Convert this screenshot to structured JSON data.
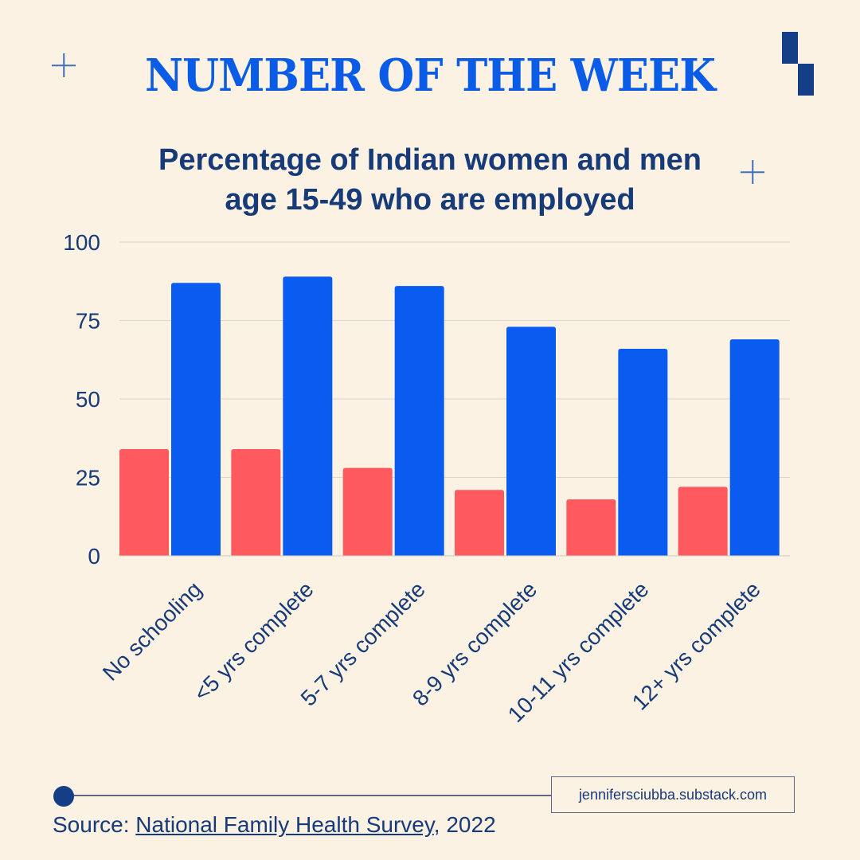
{
  "header": {
    "headline": "NUMBER OF THE WEEK"
  },
  "chart_data": {
    "type": "bar",
    "title": "Percentage of Indian women and men age 15-49 who are employed",
    "title_lines": [
      "Percentage of Indian women and men",
      "age 15-49 who are employed"
    ],
    "xlabel": "",
    "ylabel": "",
    "ylim": [
      0,
      100
    ],
    "yticks": [
      0,
      25,
      50,
      75,
      100
    ],
    "grid": true,
    "legend": "none",
    "categories": [
      "No schooling",
      "<5 yrs complete",
      "5-7 yrs complete",
      "8-9 yrs complete",
      "10-11 yrs complete",
      "12+ yrs complete"
    ],
    "series": [
      {
        "values": [
          34,
          34,
          28,
          21,
          18,
          22
        ],
        "color": "#ff5a5f"
      },
      {
        "values": [
          87,
          89,
          86,
          73,
          66,
          69
        ],
        "color": "#0a5cf0"
      }
    ]
  },
  "footer": {
    "site": "jennifersciubba.substack.com",
    "source_prefix": "Source: ",
    "source_link": "National Family Health Survey",
    "source_suffix": ", 2022"
  },
  "icons": {
    "corner_plus": "plus-icon",
    "corner_blocks": "block-decoration-icon",
    "footer_dot": "dot-icon"
  },
  "colors": {
    "background": "#fbf2e3",
    "headline": "#0a5ce6",
    "text": "#173a78",
    "women_bar": "#ff5a5f",
    "men_bar": "#0a5cf0"
  }
}
